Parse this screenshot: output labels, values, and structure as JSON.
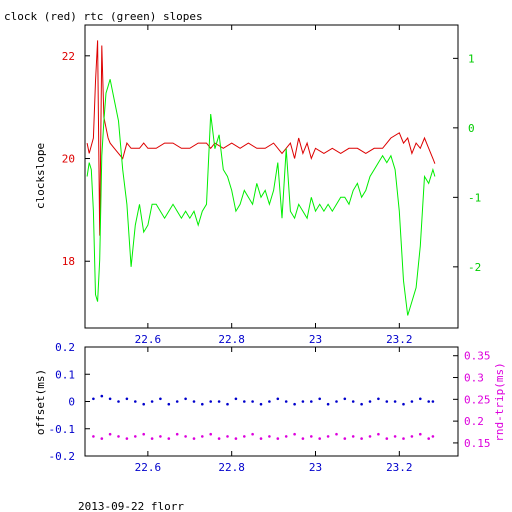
{
  "chart_data": [
    {
      "type": "line",
      "title": "clock (red) rtc (green) slopes",
      "ylabel_left": "clockslope",
      "xlim": [
        22.45,
        23.34
      ],
      "x_ticks": [
        22.6,
        22.8,
        23,
        23.2
      ],
      "x_tick_labels": [
        "22.6",
        "22.8",
        "23",
        "23.2"
      ],
      "ylim_left": [
        16.7,
        22.6
      ],
      "y_ticks_left": [
        18,
        20,
        22
      ],
      "y_tick_labels_left": [
        "18",
        "20",
        "22"
      ],
      "ylim_right": [
        -2.88,
        1.48
      ],
      "y_ticks_right": [
        -2,
        -1,
        0,
        1
      ],
      "y_tick_labels_right": [
        "-2",
        "-1",
        "0",
        "1"
      ],
      "series": [
        {
          "name": "clock",
          "axis": "left",
          "color": "#dd0000",
          "x": [
            22.455,
            22.46,
            22.47,
            22.475,
            22.48,
            22.485,
            22.49,
            22.495,
            22.5,
            22.505,
            22.51,
            22.52,
            22.53,
            22.54,
            22.55,
            22.56,
            22.57,
            22.58,
            22.59,
            22.6,
            22.62,
            22.64,
            22.66,
            22.68,
            22.7,
            22.72,
            22.74,
            22.75,
            22.76,
            22.78,
            22.8,
            22.82,
            22.84,
            22.86,
            22.88,
            22.9,
            22.92,
            22.94,
            22.95,
            22.96,
            22.97,
            22.98,
            22.99,
            23.0,
            23.02,
            23.04,
            23.06,
            23.08,
            23.1,
            23.12,
            23.14,
            23.16,
            23.18,
            23.2,
            23.21,
            23.22,
            23.23,
            23.24,
            23.25,
            23.26,
            23.27,
            23.28,
            23.285
          ],
          "y": [
            20.3,
            20.1,
            20.4,
            21.5,
            22.3,
            18.5,
            22.2,
            20.8,
            20.6,
            20.4,
            20.3,
            20.2,
            20.1,
            20.0,
            20.3,
            20.2,
            20.2,
            20.2,
            20.3,
            20.2,
            20.2,
            20.3,
            20.3,
            20.2,
            20.2,
            20.3,
            20.3,
            20.2,
            20.3,
            20.2,
            20.3,
            20.2,
            20.3,
            20.2,
            20.2,
            20.3,
            20.1,
            20.3,
            20.0,
            20.4,
            20.1,
            20.3,
            20.0,
            20.2,
            20.1,
            20.2,
            20.1,
            20.2,
            20.2,
            20.1,
            20.2,
            20.2,
            20.4,
            20.5,
            20.3,
            20.4,
            20.1,
            20.3,
            20.2,
            20.4,
            20.2,
            20.0,
            19.9
          ]
        },
        {
          "name": "rtc",
          "axis": "right",
          "color": "#00ee00",
          "x": [
            22.455,
            22.46,
            22.465,
            22.47,
            22.475,
            22.48,
            22.485,
            22.49,
            22.495,
            22.5,
            22.505,
            22.51,
            22.52,
            22.53,
            22.54,
            22.55,
            22.56,
            22.57,
            22.58,
            22.59,
            22.6,
            22.61,
            22.62,
            22.63,
            22.64,
            22.65,
            22.66,
            22.67,
            22.68,
            22.69,
            22.7,
            22.71,
            22.72,
            22.73,
            22.74,
            22.75,
            22.76,
            22.77,
            22.78,
            22.79,
            22.8,
            22.81,
            22.82,
            22.83,
            22.84,
            22.85,
            22.86,
            22.87,
            22.88,
            22.89,
            22.9,
            22.91,
            22.92,
            22.93,
            22.94,
            22.95,
            22.96,
            22.97,
            22.98,
            22.99,
            23.0,
            23.01,
            23.02,
            23.03,
            23.04,
            23.05,
            23.06,
            23.07,
            23.08,
            23.09,
            23.1,
            23.11,
            23.12,
            23.13,
            23.14,
            23.15,
            23.16,
            23.17,
            23.18,
            23.19,
            23.2,
            23.21,
            23.22,
            23.23,
            23.24,
            23.25,
            23.26,
            23.27,
            23.28,
            23.285
          ],
          "y": [
            -0.7,
            -0.5,
            -0.6,
            -1.2,
            -2.4,
            -2.5,
            -1.9,
            -0.4,
            0.1,
            0.5,
            0.6,
            0.7,
            0.4,
            0.1,
            -0.6,
            -1.1,
            -2.0,
            -1.4,
            -1.1,
            -1.5,
            -1.4,
            -1.1,
            -1.1,
            -1.2,
            -1.3,
            -1.2,
            -1.1,
            -1.2,
            -1.3,
            -1.2,
            -1.3,
            -1.2,
            -1.4,
            -1.2,
            -1.1,
            0.2,
            -0.3,
            -0.1,
            -0.6,
            -0.7,
            -0.9,
            -1.2,
            -1.1,
            -0.9,
            -1.0,
            -1.1,
            -0.8,
            -1.0,
            -0.9,
            -1.1,
            -0.9,
            -0.5,
            -1.3,
            -0.3,
            -1.2,
            -1.3,
            -1.1,
            -1.2,
            -1.3,
            -1.0,
            -1.2,
            -1.1,
            -1.2,
            -1.1,
            -1.2,
            -1.1,
            -1.0,
            -1.0,
            -1.1,
            -0.9,
            -0.8,
            -1.0,
            -0.9,
            -0.7,
            -0.6,
            -0.5,
            -0.4,
            -0.5,
            -0.4,
            -0.6,
            -1.2,
            -2.2,
            -2.7,
            -2.5,
            -2.3,
            -1.7,
            -0.7,
            -0.8,
            -0.6,
            -0.7
          ]
        }
      ]
    },
    {
      "type": "scatter",
      "ylabel_left": "offset(ms)",
      "ylabel_right": "rnd-trip(ms)",
      "xlim": [
        22.45,
        23.34
      ],
      "x_ticks": [
        22.6,
        22.8,
        23,
        23.2
      ],
      "x_tick_labels": [
        "22.6",
        "22.8",
        "23",
        "23.2"
      ],
      "ylim_left": [
        -0.2,
        0.2
      ],
      "y_ticks_left": [
        -0.2,
        -0.1,
        0,
        0.1,
        0.2
      ],
      "y_tick_labels_left": [
        "-0.2",
        "-0.1",
        "0",
        "0.1",
        "0.2"
      ],
      "ylim_right": [
        0.12,
        0.37
      ],
      "y_ticks_right": [
        0.15,
        0.2,
        0.25,
        0.3,
        0.35
      ],
      "y_tick_labels_right": [
        "0.15",
        "0.2",
        "0.25",
        "0.3",
        "0.35"
      ],
      "series": [
        {
          "name": "offset",
          "axis": "left",
          "color": "#0000cc",
          "x": [
            22.47,
            22.49,
            22.51,
            22.53,
            22.55,
            22.57,
            22.59,
            22.61,
            22.63,
            22.65,
            22.67,
            22.69,
            22.71,
            22.73,
            22.75,
            22.77,
            22.79,
            22.81,
            22.83,
            22.85,
            22.87,
            22.89,
            22.91,
            22.93,
            22.95,
            22.97,
            22.99,
            23.01,
            23.03,
            23.05,
            23.07,
            23.09,
            23.11,
            23.13,
            23.15,
            23.17,
            23.19,
            23.21,
            23.23,
            23.25,
            23.27,
            23.28
          ],
          "y": [
            0.01,
            0.02,
            0.01,
            0.0,
            0.01,
            0.0,
            -0.01,
            0.0,
            0.01,
            -0.01,
            0.0,
            0.01,
            0.0,
            -0.01,
            0.0,
            0.0,
            -0.01,
            0.01,
            0.0,
            0.0,
            -0.01,
            0.0,
            0.01,
            0.0,
            -0.01,
            0.0,
            0.0,
            0.01,
            -0.01,
            0.0,
            0.01,
            0.0,
            -0.01,
            0.0,
            0.01,
            0.0,
            0.0,
            -0.01,
            0.0,
            0.01,
            0.0,
            0.0
          ]
        },
        {
          "name": "rnd-trip",
          "axis": "right",
          "color": "#dd00dd",
          "x": [
            22.47,
            22.49,
            22.51,
            22.53,
            22.55,
            22.57,
            22.59,
            22.61,
            22.63,
            22.65,
            22.67,
            22.69,
            22.71,
            22.73,
            22.75,
            22.77,
            22.79,
            22.81,
            22.83,
            22.85,
            22.87,
            22.89,
            22.91,
            22.93,
            22.95,
            22.97,
            22.99,
            23.01,
            23.03,
            23.05,
            23.07,
            23.09,
            23.11,
            23.13,
            23.15,
            23.17,
            23.19,
            23.21,
            23.23,
            23.25,
            23.27,
            23.28
          ],
          "y": [
            0.165,
            0.16,
            0.17,
            0.165,
            0.16,
            0.165,
            0.17,
            0.16,
            0.165,
            0.16,
            0.17,
            0.165,
            0.16,
            0.165,
            0.17,
            0.16,
            0.165,
            0.16,
            0.165,
            0.17,
            0.16,
            0.165,
            0.16,
            0.165,
            0.17,
            0.16,
            0.165,
            0.16,
            0.165,
            0.17,
            0.16,
            0.165,
            0.16,
            0.165,
            0.17,
            0.16,
            0.165,
            0.16,
            0.165,
            0.17,
            0.16,
            0.165
          ]
        }
      ]
    }
  ],
  "footer": "2013-09-22 florr"
}
